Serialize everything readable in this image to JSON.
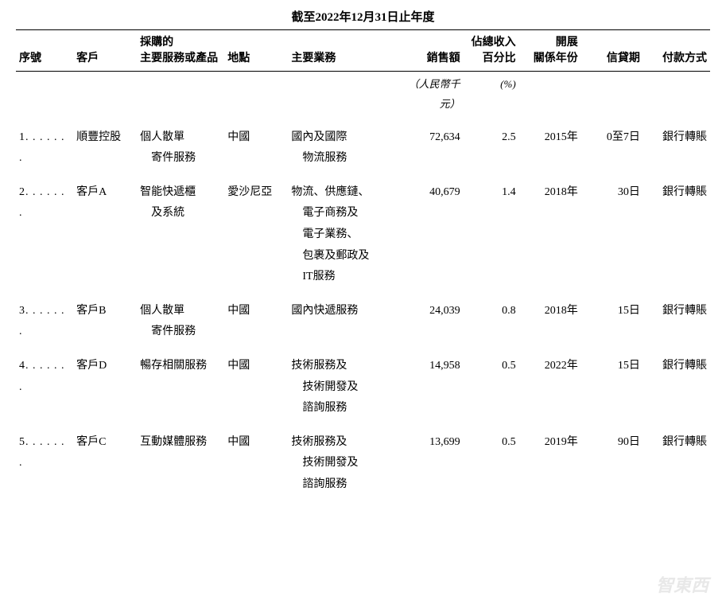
{
  "title": "截至2022年12月31日止年度",
  "columns": {
    "seq": "序號",
    "customer": "客戶",
    "service": "採購的\n主要服務或產品",
    "location": "地點",
    "business": "主要業務",
    "sales": "銷售額",
    "percent": "佔總收入\n百分比",
    "year": "開展\n關係年份",
    "credit": "信貸期",
    "payment": "付款方式"
  },
  "subheader": {
    "sales_unit": "（人民幣千元）",
    "percent_unit": "(%)"
  },
  "rows": [
    {
      "seq": "1. . . . . . .",
      "customer": "順豐控股",
      "service_l1": "個人散單",
      "service_l2": "寄件服務",
      "location": "中國",
      "business_l1": "國內及國際",
      "business_l2": "物流服務",
      "business_l3": "",
      "business_l4": "",
      "business_l5": "",
      "sales": "72,634",
      "percent": "2.5",
      "year": "2015年",
      "credit": "0至7日",
      "payment": "銀行轉賬"
    },
    {
      "seq": "2. . . . . . .",
      "customer": "客戶A",
      "service_l1": "智能快遞櫃",
      "service_l2": "及系統",
      "location": "愛沙尼亞",
      "business_l1": "物流、供應鏈、",
      "business_l2": "電子商務及",
      "business_l3": "電子業務、",
      "business_l4": "包裹及郵政及",
      "business_l5": "IT服務",
      "sales": "40,679",
      "percent": "1.4",
      "year": "2018年",
      "credit": "30日",
      "payment": "銀行轉賬"
    },
    {
      "seq": "3. . . . . . .",
      "customer": "客戶B",
      "service_l1": "個人散單",
      "service_l2": "寄件服務",
      "location": "中國",
      "business_l1": "國內快遞服務",
      "business_l2": "",
      "business_l3": "",
      "business_l4": "",
      "business_l5": "",
      "sales": "24,039",
      "percent": "0.8",
      "year": "2018年",
      "credit": "15日",
      "payment": "銀行轉賬"
    },
    {
      "seq": "4. . . . . . .",
      "customer": "客戶D",
      "service_l1": "暢存相關服務",
      "service_l2": "",
      "location": "中國",
      "business_l1": "技術服務及",
      "business_l2": "技術開發及",
      "business_l3": "諮詢服務",
      "business_l4": "",
      "business_l5": "",
      "sales": "14,958",
      "percent": "0.5",
      "year": "2022年",
      "credit": "15日",
      "payment": "銀行轉賬"
    },
    {
      "seq": "5. . . . . . .",
      "customer": "客戶C",
      "service_l1": "互動媒體服務",
      "service_l2": "",
      "location": "中國",
      "business_l1": "技術服務及",
      "business_l2": "技術開發及",
      "business_l3": "諮詢服務",
      "business_l4": "",
      "business_l5": "",
      "sales": "13,699",
      "percent": "0.5",
      "year": "2019年",
      "credit": "90日",
      "payment": "銀行轉賬"
    }
  ],
  "watermark": "智東西"
}
